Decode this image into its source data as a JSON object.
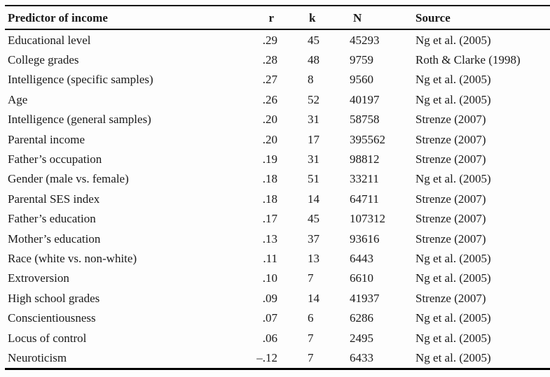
{
  "table": {
    "columns": [
      {
        "key": "predictor",
        "label": "Predictor of income"
      },
      {
        "key": "r",
        "label": "r"
      },
      {
        "key": "k",
        "label": "k"
      },
      {
        "key": "n",
        "label": "N"
      },
      {
        "key": "source",
        "label": "Source"
      }
    ],
    "rows": [
      {
        "predictor": "Educational level",
        "r": ".29",
        "k": "45",
        "n": "45293",
        "source": "Ng et al. (2005)"
      },
      {
        "predictor": "College grades",
        "r": ".28",
        "k": "48",
        "n": "9759",
        "source": "Roth & Clarke (1998)"
      },
      {
        "predictor": "Intelligence (specific samples)",
        "r": ".27",
        "k": "8",
        "n": "9560",
        "source": "Ng et al. (2005)"
      },
      {
        "predictor": "Age",
        "r": ".26",
        "k": "52",
        "n": "40197",
        "source": "Ng et al. (2005)"
      },
      {
        "predictor": "Intelligence (general samples)",
        "r": ".20",
        "k": "31",
        "n": "58758",
        "source": "Strenze (2007)"
      },
      {
        "predictor": "Parental income",
        "r": ".20",
        "k": "17",
        "n": "395562",
        "source": "Strenze (2007)"
      },
      {
        "predictor": "Father’s occupation",
        "r": ".19",
        "k": "31",
        "n": "98812",
        "source": "Strenze (2007)"
      },
      {
        "predictor": "Gender (male vs. female)",
        "r": ".18",
        "k": "51",
        "n": "33211",
        "source": "Ng et al. (2005)"
      },
      {
        "predictor": "Parental SES index",
        "r": ".18",
        "k": "14",
        "n": "64711",
        "source": "Strenze (2007)"
      },
      {
        "predictor": "Father’s education",
        "r": ".17",
        "k": "45",
        "n": "107312",
        "source": "Strenze (2007)"
      },
      {
        "predictor": "Mother’s education",
        "r": ".13",
        "k": "37",
        "n": "93616",
        "source": "Strenze (2007)"
      },
      {
        "predictor": "Race (white vs. non-white)",
        "r": ".11",
        "k": "13",
        "n": "6443",
        "source": "Ng et al. (2005)"
      },
      {
        "predictor": "Extroversion",
        "r": ".10",
        "k": "7",
        "n": "6610",
        "source": "Ng et al. (2005)"
      },
      {
        "predictor": "High school grades",
        "r": ".09",
        "k": "14",
        "n": "41937",
        "source": "Strenze (2007)"
      },
      {
        "predictor": "Conscientiousness",
        "r": ".07",
        "k": "6",
        "n": "6286",
        "source": "Ng et al. (2005)"
      },
      {
        "predictor": "Locus of control",
        "r": ".06",
        "k": "7",
        "n": "2495",
        "source": "Ng et al. (2005)"
      },
      {
        "predictor": "Neuroticism",
        "r": "–.12",
        "k": "7",
        "n": "6433",
        "source": "Ng et al. (2005)"
      }
    ]
  },
  "colors": {
    "text": "#1a1a1a",
    "rule": "#000000",
    "background": "#fdfdfd"
  }
}
